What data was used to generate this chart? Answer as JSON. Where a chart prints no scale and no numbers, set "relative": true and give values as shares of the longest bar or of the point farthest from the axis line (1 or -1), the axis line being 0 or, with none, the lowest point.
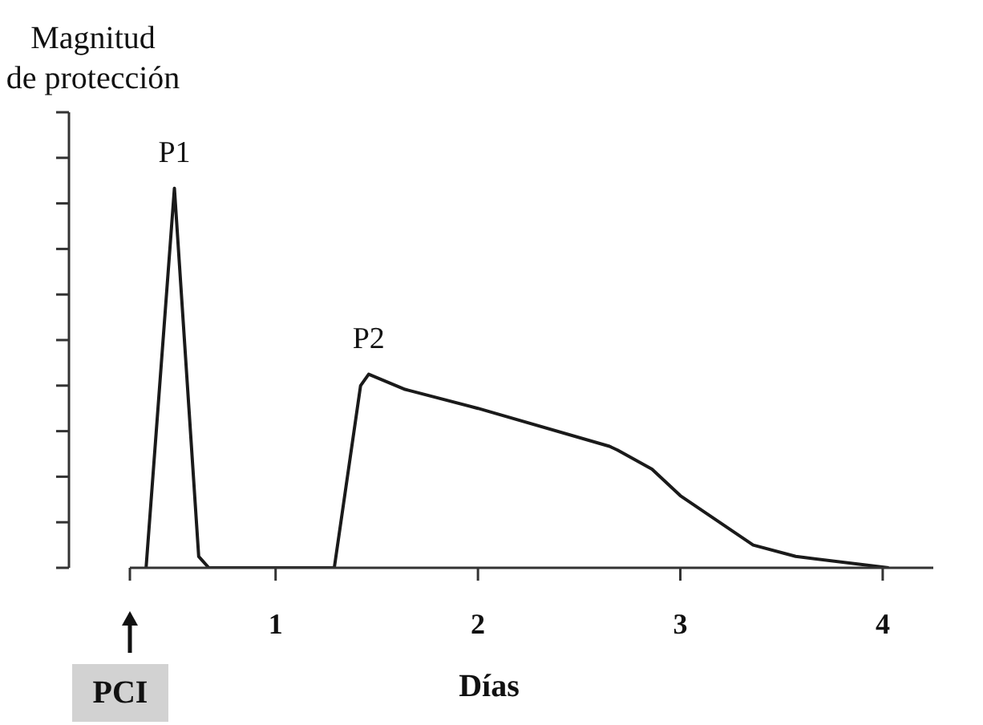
{
  "chart_data": {
    "type": "line",
    "ylabel": "Magnitud\nde protección",
    "xlabel": "Días",
    "relative": true,
    "x": [
      0.36,
      0.5,
      0.62,
      0.67,
      1.24,
      1.29,
      1.42,
      1.46,
      1.64,
      2.0,
      2.65,
      2.69,
      2.86,
      3.0,
      3.36,
      3.57,
      4.03
    ],
    "values": [
      0,
      1,
      0.03,
      0,
      0,
      0,
      0.48,
      0.51,
      0.47,
      0.42,
      0.32,
      0.31,
      0.26,
      0.19,
      0.06,
      0.03,
      0
    ],
    "color": "#1a1a1a",
    "xlim": [
      0.28,
      4.25
    ],
    "xticks": [
      {
        "value": 0.28,
        "label": null
      },
      1,
      2,
      3,
      4
    ],
    "annotations": [
      {
        "text": "P1",
        "x": 0.5,
        "y": 1
      },
      {
        "text": "P2",
        "x": 1.46,
        "y": 0.51
      },
      "PCI"
    ]
  }
}
